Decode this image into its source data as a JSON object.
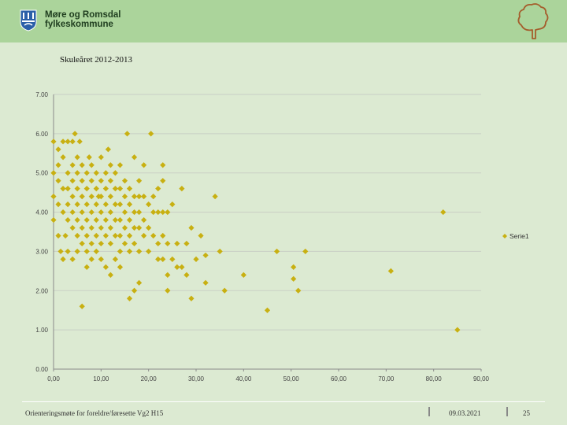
{
  "header": {
    "org_line1": "Møre og Romsdal",
    "org_line2": "fylkeskommune"
  },
  "subtitle": "Skuleåret 2012-2013",
  "colors": {
    "header_bg": "#abd49b",
    "background": "#dcead2",
    "marker": "#c8b012"
  },
  "footer": {
    "left": "Orienteringsmøte for foreldre/føresette Vg2 H15",
    "date": "09.03.2021",
    "page": "25"
  },
  "chart_data": {
    "type": "scatter",
    "title": "",
    "xlabel": "",
    "ylabel": "",
    "xlim": [
      0,
      90
    ],
    "ylim": [
      0,
      7
    ],
    "x_ticks": [
      "0,00",
      "10,00",
      "20,00",
      "30,00",
      "40,00",
      "50,00",
      "60,00",
      "70,00",
      "80,00",
      "90,00"
    ],
    "y_ticks": [
      "0.00",
      "1.00",
      "2.00",
      "3.00",
      "4.00",
      "5.00",
      "6.00",
      "7.00"
    ],
    "grid": true,
    "legend": "right",
    "series": [
      {
        "name": "Serie1",
        "points": [
          [
            0,
            5.8
          ],
          [
            0,
            5
          ],
          [
            0,
            4.4
          ],
          [
            0,
            3.8
          ],
          [
            1,
            5.6
          ],
          [
            1,
            5.2
          ],
          [
            1,
            4.8
          ],
          [
            1,
            4.2
          ],
          [
            1,
            3.4
          ],
          [
            1.5,
            3
          ],
          [
            2,
            5.8
          ],
          [
            2,
            5.4
          ],
          [
            2,
            4.6
          ],
          [
            2,
            4
          ],
          [
            2,
            2.8
          ],
          [
            2.5,
            3.4
          ],
          [
            3,
            5.8
          ],
          [
            3,
            5
          ],
          [
            3,
            4.6
          ],
          [
            3,
            4.2
          ],
          [
            3,
            3.8
          ],
          [
            3,
            3
          ],
          [
            4,
            5.8
          ],
          [
            4,
            5.2
          ],
          [
            4,
            4.8
          ],
          [
            4,
            4.4
          ],
          [
            4,
            4
          ],
          [
            4,
            3.6
          ],
          [
            4,
            2.8
          ],
          [
            4.5,
            6
          ],
          [
            5,
            5.4
          ],
          [
            5,
            5
          ],
          [
            5,
            4.6
          ],
          [
            5,
            4.2
          ],
          [
            5,
            3.8
          ],
          [
            5,
            3.4
          ],
          [
            5,
            3
          ],
          [
            5.5,
            5.8
          ],
          [
            6,
            5.2
          ],
          [
            6,
            4.8
          ],
          [
            6,
            4.4
          ],
          [
            6,
            4
          ],
          [
            6,
            3.6
          ],
          [
            6,
            3.2
          ],
          [
            6,
            1.6
          ],
          [
            7,
            5
          ],
          [
            7,
            4.6
          ],
          [
            7,
            4.2
          ],
          [
            7,
            3.8
          ],
          [
            7,
            3.4
          ],
          [
            7,
            3
          ],
          [
            7,
            2.6
          ],
          [
            7.5,
            5.4
          ],
          [
            8,
            5.2
          ],
          [
            8,
            4.8
          ],
          [
            8,
            4.4
          ],
          [
            8,
            4
          ],
          [
            8,
            3.6
          ],
          [
            8,
            3.2
          ],
          [
            8,
            2.8
          ],
          [
            9,
            5
          ],
          [
            9,
            4.6
          ],
          [
            9,
            4.2
          ],
          [
            9,
            3.8
          ],
          [
            9,
            3.4
          ],
          [
            9,
            3
          ],
          [
            9.5,
            4.4
          ],
          [
            10,
            5.4
          ],
          [
            10,
            4.8
          ],
          [
            10,
            4.4
          ],
          [
            10,
            4
          ],
          [
            10,
            3.6
          ],
          [
            10,
            3.2
          ],
          [
            10,
            2.8
          ],
          [
            11,
            5
          ],
          [
            11,
            4.6
          ],
          [
            11,
            4.2
          ],
          [
            11,
            3.8
          ],
          [
            11,
            3.4
          ],
          [
            11,
            2.6
          ],
          [
            11.5,
            5.6
          ],
          [
            12,
            5.2
          ],
          [
            12,
            4.8
          ],
          [
            12,
            4.4
          ],
          [
            12,
            4
          ],
          [
            12,
            3.6
          ],
          [
            12,
            3.2
          ],
          [
            12,
            2.4
          ],
          [
            13,
            5
          ],
          [
            13,
            4.6
          ],
          [
            13,
            4.2
          ],
          [
            13,
            3.8
          ],
          [
            13,
            3.4
          ],
          [
            13,
            2.8
          ],
          [
            14,
            5.2
          ],
          [
            14,
            4.6
          ],
          [
            14,
            4.2
          ],
          [
            14,
            3.8
          ],
          [
            14,
            3.4
          ],
          [
            14,
            3
          ],
          [
            14,
            2.6
          ],
          [
            15,
            4.8
          ],
          [
            15,
            4.4
          ],
          [
            15,
            4
          ],
          [
            15,
            3.6
          ],
          [
            15,
            3.2
          ],
          [
            15.5,
            6
          ],
          [
            16,
            4.6
          ],
          [
            16,
            4.2
          ],
          [
            16,
            3.8
          ],
          [
            16,
            3.4
          ],
          [
            16,
            3
          ],
          [
            16,
            1.8
          ],
          [
            17,
            5.4
          ],
          [
            17,
            4.4
          ],
          [
            17,
            4
          ],
          [
            17,
            3.6
          ],
          [
            17,
            3.2
          ],
          [
            17,
            2
          ],
          [
            18,
            4.8
          ],
          [
            18,
            4.4
          ],
          [
            18,
            4
          ],
          [
            18,
            3.6
          ],
          [
            18,
            3
          ],
          [
            18,
            2.2
          ],
          [
            19,
            5.2
          ],
          [
            19,
            4.4
          ],
          [
            19,
            3.8
          ],
          [
            19,
            3.4
          ],
          [
            20,
            4.2
          ],
          [
            20,
            3.6
          ],
          [
            20,
            3
          ],
          [
            20.5,
            6
          ],
          [
            21,
            4.4
          ],
          [
            21,
            4
          ],
          [
            21,
            3.4
          ],
          [
            22,
            4.6
          ],
          [
            22,
            4
          ],
          [
            22,
            3.2
          ],
          [
            22,
            2.8
          ],
          [
            23,
            5.2
          ],
          [
            23,
            4.8
          ],
          [
            23,
            4
          ],
          [
            23,
            3.4
          ],
          [
            23,
            2.8
          ],
          [
            24,
            4
          ],
          [
            24,
            3.2
          ],
          [
            24,
            2.4
          ],
          [
            24,
            2
          ],
          [
            25,
            4.2
          ],
          [
            25,
            2.8
          ],
          [
            26,
            3.2
          ],
          [
            26,
            2.6
          ],
          [
            27,
            4.6
          ],
          [
            27,
            2.6
          ],
          [
            28,
            3.2
          ],
          [
            28,
            2.4
          ],
          [
            29,
            3.6
          ],
          [
            29,
            1.8
          ],
          [
            30,
            2.8
          ],
          [
            31,
            3.4
          ],
          [
            32,
            2.9
          ],
          [
            32,
            2.2
          ],
          [
            34,
            4.4
          ],
          [
            35,
            3
          ],
          [
            36,
            2
          ],
          [
            40,
            2.4
          ],
          [
            45,
            1.5
          ],
          [
            47,
            3
          ],
          [
            50.5,
            2.6
          ],
          [
            50.5,
            2.3
          ],
          [
            51.5,
            2
          ],
          [
            53,
            3
          ],
          [
            71,
            2.5
          ],
          [
            82,
            4
          ],
          [
            85,
            1
          ]
        ]
      }
    ]
  }
}
